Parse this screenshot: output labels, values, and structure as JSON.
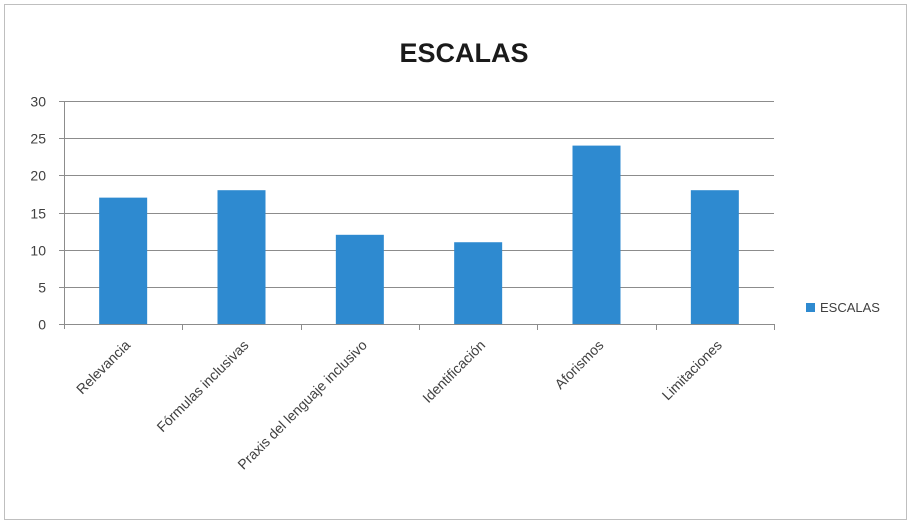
{
  "chart_data": {
    "type": "bar",
    "title": "ESCALAS",
    "categories": [
      "Relevancia",
      "Fórmulas inclusivas",
      "Praxis del lenguaje inclusivo",
      "Identificación",
      "Aforismos",
      "Limitaciones"
    ],
    "series": [
      {
        "name": "ESCALAS",
        "values": [
          17,
          18,
          12,
          11,
          24,
          18
        ],
        "color": "#2e8ad0"
      }
    ],
    "xlabel": "",
    "ylabel": "",
    "ylim": [
      0,
      30
    ],
    "yticks": [
      0,
      5,
      10,
      15,
      20,
      25,
      30
    ],
    "grid": true,
    "legend_position": "right",
    "colors": {
      "bar": "#2e8ad0",
      "grid": "#8c8c8c",
      "axis": "#8c8c8c",
      "text": "#404040"
    }
  }
}
